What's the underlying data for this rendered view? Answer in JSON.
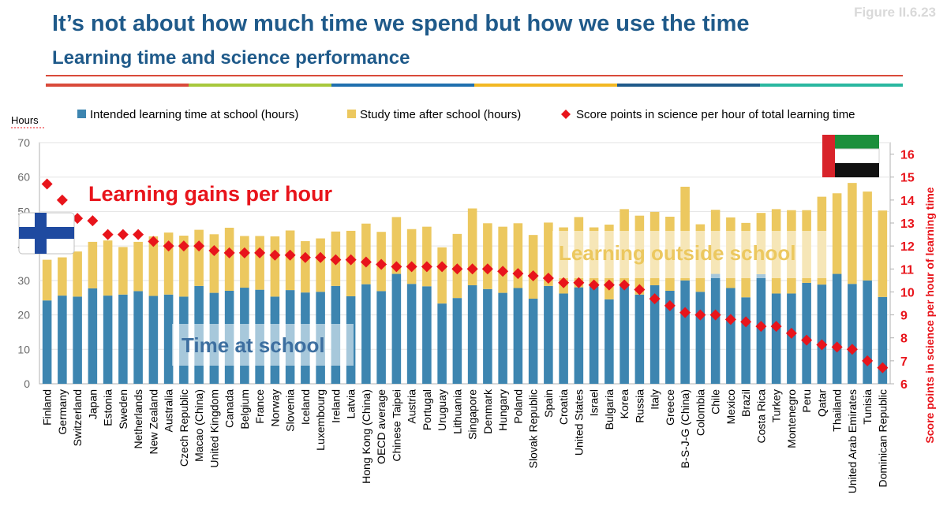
{
  "figure_label": "Figure II.6.23",
  "title": "It’s not about how much time we spend but how we use the time",
  "subtitle": "Learning time and science performance",
  "colors": {
    "title": "#1f5a8a",
    "school_bar": "#3d85b0",
    "after_bar": "#ecc85f",
    "marker": "#e8141b",
    "right_axis": "#e8141b",
    "strip": [
      "#d94a3a",
      "#a7c83c",
      "#1f6fae",
      "#f2b823",
      "#1f5a8a",
      "#2ab7a0"
    ]
  },
  "annotations": {
    "gains": "Learning gains per hour",
    "outside": "Learning outside school",
    "school": "Time at school"
  },
  "flags": {
    "left": "finland-flag",
    "right": "uae-flag"
  },
  "chart_data": {
    "type": "bar",
    "stacked": true,
    "ylabel": "Hours",
    "ylim": [
      0,
      70
    ],
    "yticks": [
      0,
      10,
      20,
      30,
      40,
      50,
      60,
      70
    ],
    "y2label": "Score points in science per hour of learning time",
    "y2lim": [
      6,
      16.5
    ],
    "y2ticks": [
      6,
      7,
      8,
      9,
      10,
      11,
      12,
      13,
      14,
      15,
      16
    ],
    "legend": {
      "school": "Intended learning time at school (hours)",
      "after": "Study time after school (hours)",
      "score": "Score points in science per hour of total learning time"
    },
    "categories": [
      "Finland",
      "Germany",
      "Switzerland",
      "Japan",
      "Estonia",
      "Sweden",
      "Netherlands",
      "New Zealand",
      "Australia",
      "Czech Republic",
      "Macao (China)",
      "United Kingdom",
      "Canada",
      "Belgium",
      "France",
      "Norway",
      "Slovenia",
      "Iceland",
      "Luxembourg",
      "Ireland",
      "Latvia",
      "Hong Kong (China)",
      "OECD average",
      "Chinese Taipei",
      "Austria",
      "Portugal",
      "Uruguay",
      "Lithuania",
      "Singapore",
      "Denmark",
      "Hungary",
      "Poland",
      "Slovak Republic",
      "Spain",
      "Croatia",
      "United States",
      "Israel",
      "Bulgaria",
      "Korea",
      "Russia",
      "Italy",
      "Greece",
      "B-S-J-G (China)",
      "Colombia",
      "Chile",
      "Mexico",
      "Brazil",
      "Costa Rica",
      "Turkey",
      "Montenegro",
      "Peru",
      "Qatar",
      "Thailand",
      "United Arab Emirates",
      "Tunisia",
      "Dominican Republic"
    ],
    "series": [
      {
        "name": "Intended learning time at school (hours)",
        "values": [
          24.2,
          25.6,
          25.3,
          27.7,
          25.6,
          25.9,
          26.9,
          25.5,
          25.9,
          25.3,
          28.4,
          26.4,
          27.0,
          27.9,
          27.3,
          25.3,
          27.2,
          26.5,
          26.7,
          28.4,
          25.4,
          28.9,
          26.9,
          31.9,
          29.0,
          28.3,
          23.3,
          24.9,
          28.6,
          27.5,
          26.4,
          27.8,
          24.7,
          28.4,
          26.2,
          28.0,
          28.3,
          24.5,
          28.4,
          25.9,
          28.6,
          27.0,
          30.0,
          26.7,
          31.9,
          27.8,
          25.1,
          31.8,
          26.2,
          26.2,
          29.3,
          28.8,
          31.9,
          29.0,
          30.0,
          25.2
        ]
      },
      {
        "name": "Study time after school (hours)",
        "values": [
          11.8,
          11.1,
          13.1,
          13.5,
          16.0,
          13.8,
          14.3,
          17.3,
          18.0,
          17.7,
          16.3,
          17.0,
          18.3,
          15.0,
          15.6,
          17.5,
          17.3,
          14.9,
          15.5,
          15.8,
          19.0,
          17.6,
          17.2,
          16.5,
          15.9,
          17.3,
          16.3,
          18.6,
          22.3,
          19.1,
          19.2,
          18.8,
          18.5,
          18.4,
          19.2,
          20.4,
          17.1,
          21.7,
          22.3,
          22.9,
          21.3,
          21.5,
          27.2,
          19.6,
          18.6,
          20.5,
          21.6,
          17.8,
          24.5,
          24.2,
          21.1,
          25.5,
          23.4,
          29.3,
          25.8,
          25.1
        ]
      },
      {
        "name": "Score points in science per hour of total learning time",
        "values": [
          14.7,
          14.0,
          13.2,
          13.1,
          12.5,
          12.5,
          12.5,
          12.2,
          12.0,
          12.0,
          12.0,
          11.8,
          11.7,
          11.7,
          11.7,
          11.6,
          11.6,
          11.5,
          11.5,
          11.4,
          11.4,
          11.3,
          11.2,
          11.1,
          11.1,
          11.1,
          11.1,
          11.0,
          11.0,
          11.0,
          10.9,
          10.8,
          10.7,
          10.6,
          10.4,
          10.4,
          10.3,
          10.3,
          10.3,
          10.1,
          9.7,
          9.4,
          9.1,
          9.0,
          9.0,
          8.8,
          8.7,
          8.5,
          8.5,
          8.2,
          7.9,
          7.7,
          7.6,
          7.5,
          7.0,
          6.7
        ]
      }
    ]
  }
}
